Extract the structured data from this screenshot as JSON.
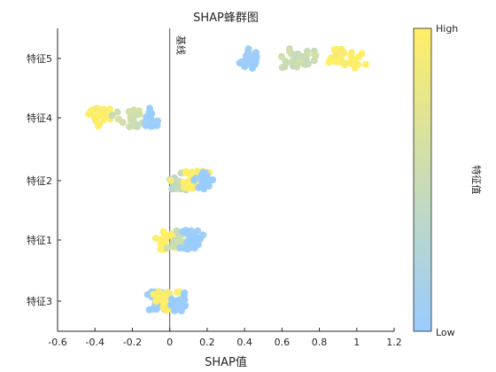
{
  "chart_data": {
    "type": "scatter",
    "title": "SHAP蜂群图",
    "xlabel": "SHAP值",
    "ylabel": "",
    "xlim": [
      -0.6,
      1.2
    ],
    "xticks": [
      "-0.6",
      "-0.4",
      "-0.2",
      "0",
      "0.2",
      "0.4",
      "0.6",
      "0.8",
      "1",
      "1.2"
    ],
    "categories": [
      "特征5",
      "特征4",
      "特征2",
      "特征1",
      "特征3"
    ],
    "baseline": {
      "x": 0,
      "label": "基线"
    },
    "colorbar": {
      "label": "特征值",
      "high": "High",
      "low": "Low",
      "color_low": "#99ccff",
      "color_mid": "#c9dcb5",
      "color_high": "#ffee66"
    },
    "series": [
      {
        "feature": "特征5",
        "clusters": [
          {
            "x_center": 0.43,
            "x_spread": 0.05,
            "count": 28,
            "value": 0.0
          },
          {
            "x_center": 0.7,
            "x_spread": 0.09,
            "count": 30,
            "value": 0.5
          },
          {
            "x_center": 0.92,
            "x_spread": 0.11,
            "count": 32,
            "value": 1.0
          }
        ]
      },
      {
        "feature": "特征4",
        "clusters": [
          {
            "x_center": -0.36,
            "x_spread": 0.07,
            "count": 22,
            "value": 1.0
          },
          {
            "x_center": -0.22,
            "x_spread": 0.07,
            "count": 24,
            "value": 0.55
          },
          {
            "x_center": -0.1,
            "x_spread": 0.05,
            "count": 20,
            "value": 0.0
          }
        ]
      },
      {
        "feature": "特征2",
        "clusters": [
          {
            "x_center": 0.05,
            "x_spread": 0.04,
            "count": 18,
            "value": 0.4
          },
          {
            "x_center": 0.12,
            "x_spread": 0.06,
            "count": 26,
            "value": 1.0
          },
          {
            "x_center": 0.18,
            "x_spread": 0.05,
            "count": 18,
            "value": 0.0
          }
        ]
      },
      {
        "feature": "特征1",
        "clusters": [
          {
            "x_center": -0.03,
            "x_spread": 0.04,
            "count": 20,
            "value": 1.0
          },
          {
            "x_center": 0.05,
            "x_spread": 0.04,
            "count": 16,
            "value": 0.5
          },
          {
            "x_center": 0.12,
            "x_spread": 0.06,
            "count": 24,
            "value": 0.0
          }
        ]
      },
      {
        "feature": "特征3",
        "clusters": [
          {
            "x_center": -0.07,
            "x_spread": 0.05,
            "count": 22,
            "value": 0.0
          },
          {
            "x_center": -0.02,
            "x_spread": 0.06,
            "count": 32,
            "value": 1.0
          },
          {
            "x_center": 0.05,
            "x_spread": 0.05,
            "count": 16,
            "value": 0.0
          }
        ]
      }
    ]
  }
}
